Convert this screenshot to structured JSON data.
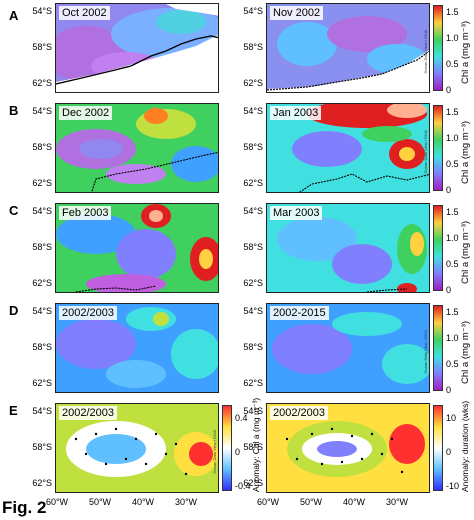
{
  "figure_label": "Fig. 2",
  "credit": "Ocean Data View / DIVA",
  "rows": [
    {
      "letter": "A",
      "panels": [
        "Oct 2002",
        "Nov 2002"
      ],
      "colorbar": {
        "ticks": [
          "1.5",
          "1.0",
          "0.5",
          "0"
        ],
        "label": "Chl a (mg m⁻³)"
      }
    },
    {
      "letter": "B",
      "panels": [
        "Dec 2002",
        "Jan 2003"
      ],
      "colorbar": {
        "ticks": [
          "1.5",
          "1.0",
          "0.5",
          "0"
        ],
        "label": "Chl a (mg m⁻³)"
      }
    },
    {
      "letter": "C",
      "panels": [
        "Feb 2003",
        "Mar 2003"
      ],
      "colorbar": {
        "ticks": [
          "1.5",
          "1.0",
          "0.5",
          "0"
        ],
        "label": "Chl a (mg m⁻³)"
      }
    },
    {
      "letter": "D",
      "panels": [
        "2002/2003",
        "2002-2015"
      ],
      "colorbar": {
        "ticks": [
          "1.5",
          "1.0",
          "0.5",
          "0"
        ],
        "label": "Chl a (mg m⁻³)"
      }
    },
    {
      "letter": "E",
      "panels": [
        "2002/2003",
        "2002/2003"
      ],
      "colorbar_left": {
        "ticks": [
          "0.4",
          "0",
          "-0.4"
        ],
        "label": "Anomaly: Chl a (mg m⁻³)"
      },
      "colorbar_right": {
        "ticks": [
          "10",
          "0",
          "-10"
        ],
        "label": "Anomaly: duration (wks)"
      }
    }
  ],
  "lat_ticks": [
    "54°S",
    "58°S",
    "62°S"
  ],
  "lon_ticks": [
    "60°W",
    "50°W",
    "40°W",
    "30°W"
  ],
  "colors": {
    "chl_scale": [
      "#a020c0",
      "#c060e0",
      "#8080ff",
      "#40a0ff",
      "#40e0e0",
      "#40d060",
      "#c0e040",
      "#ffd040",
      "#ff8020",
      "#e02020"
    ],
    "anomaly_scale": [
      "#3030ff",
      "#60c0ff",
      "#ffffff",
      "#ffe040",
      "#ff3030"
    ]
  }
}
